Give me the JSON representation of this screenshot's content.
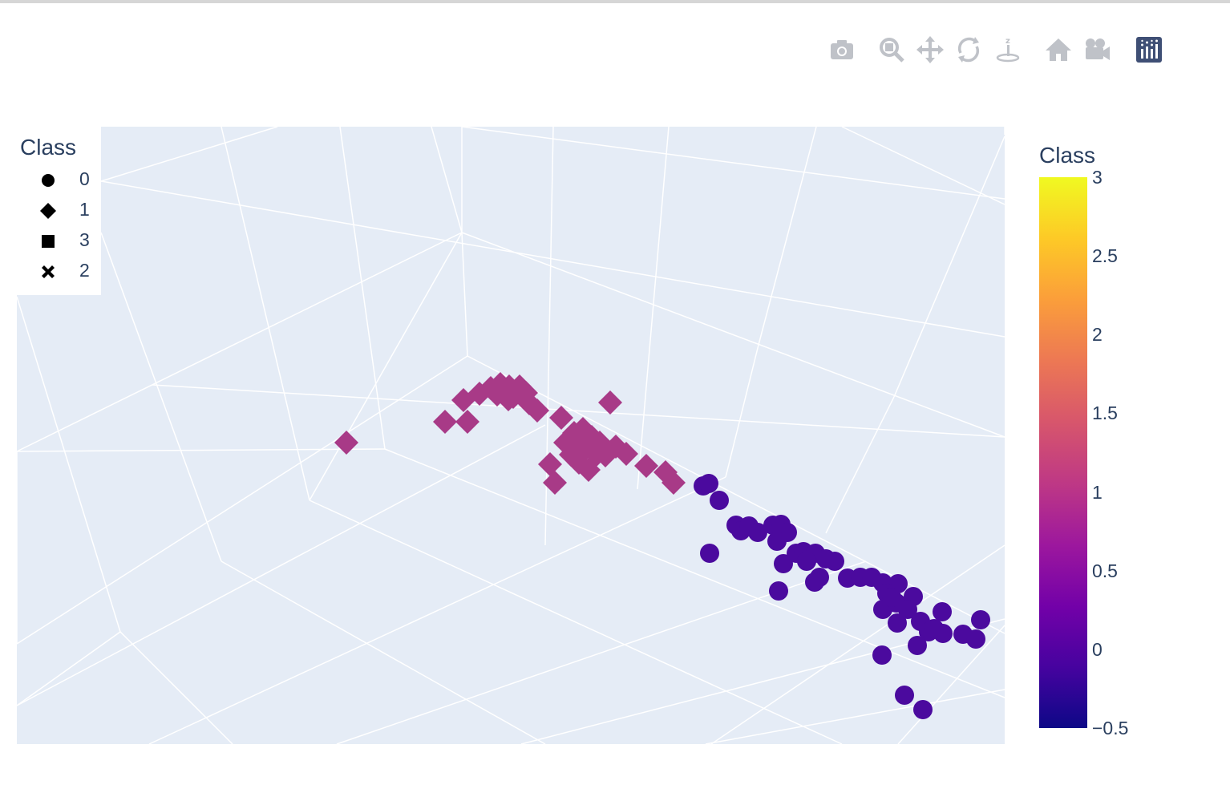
{
  "legend": {
    "title": "Class",
    "items": [
      {
        "label": "0",
        "symbol": "circle"
      },
      {
        "label": "1",
        "symbol": "diamond"
      },
      {
        "label": "3",
        "symbol": "square"
      },
      {
        "label": "2",
        "symbol": "x"
      }
    ]
  },
  "colorbar": {
    "title": "Class",
    "ticks": [
      "3",
      "2.5",
      "2",
      "1.5",
      "1",
      "0.5",
      "0",
      "−0.5"
    ],
    "tick_values": [
      3,
      2.5,
      2,
      1.5,
      1,
      0.5,
      0,
      -0.5
    ],
    "range": [
      -0.5,
      3
    ],
    "colorscale": [
      "#0d0887",
      "#46039f",
      "#7201a8",
      "#9c179e",
      "#bd3786",
      "#d8576b",
      "#ed7953",
      "#fb9f3a",
      "#fdca26",
      "#f0f921"
    ]
  },
  "modebar": {
    "buttons": [
      "camera-icon",
      "zoom-icon",
      "pan-icon",
      "orbit-icon",
      "turntable-icon",
      "home-icon",
      "camera-view-icon",
      "plotly-logo-icon"
    ]
  },
  "colors": {
    "scene_bg": "#e5ecf6",
    "grid": "#ffffff",
    "class0": "#4b0a9e",
    "class1": "#a83a87"
  },
  "chart_data": {
    "type": "scatter3d",
    "title": "",
    "xlabel": "",
    "ylabel": "",
    "zlabel": "",
    "grid": true,
    "legend_position": "top-left",
    "colorbar_position": "right",
    "series": [
      {
        "name": "0",
        "symbol": "circle",
        "class_value": 0,
        "screen_points": [
          [
            877,
            606
          ],
          [
            884,
            603
          ],
          [
            897,
            624
          ],
          [
            918,
            655
          ],
          [
            924,
            662
          ],
          [
            934,
            656
          ],
          [
            964,
            655
          ],
          [
            974,
            654
          ],
          [
            982,
            664
          ],
          [
            969,
            675
          ],
          [
            885,
            690
          ],
          [
            977,
            703
          ],
          [
            993,
            690
          ],
          [
            1002,
            688
          ],
          [
            1017,
            690
          ],
          [
            1030,
            697
          ],
          [
            1041,
            700
          ],
          [
            1022,
            720
          ],
          [
            1016,
            726
          ],
          [
            1057,
            721
          ],
          [
            1073,
            720
          ],
          [
            1087,
            720
          ],
          [
            1101,
            727
          ],
          [
            1120,
            728
          ],
          [
            1106,
            740
          ],
          [
            1118,
            752
          ],
          [
            1139,
            744
          ],
          [
            1101,
            760
          ],
          [
            1119,
            777
          ],
          [
            1148,
            775
          ],
          [
            1175,
            763
          ],
          [
            1158,
            788
          ],
          [
            1176,
            790
          ],
          [
            1201,
            791
          ],
          [
            1217,
            797
          ],
          [
            1223,
            773
          ],
          [
            1144,
            805
          ],
          [
            1100,
            817
          ],
          [
            1128,
            867
          ],
          [
            1151,
            885
          ],
          [
            971,
            737
          ],
          [
            1132,
            760
          ],
          [
            1165,
            784
          ],
          [
            1112,
            745
          ],
          [
            945,
            664
          ],
          [
            1006,
            700
          ]
        ]
      },
      {
        "name": "1",
        "symbol": "diamond",
        "class_value": 1,
        "screen_points": [
          [
            432,
            552
          ],
          [
            555,
            526
          ],
          [
            583,
            526
          ],
          [
            578,
            499
          ],
          [
            598,
            491
          ],
          [
            612,
            484
          ],
          [
            624,
            479
          ],
          [
            635,
            482
          ],
          [
            648,
            482
          ],
          [
            656,
            490
          ],
          [
            634,
            498
          ],
          [
            660,
            503
          ],
          [
            670,
            512
          ],
          [
            700,
            521
          ],
          [
            716,
            540
          ],
          [
            727,
            535
          ],
          [
            738,
            545
          ],
          [
            748,
            552
          ],
          [
            722,
            558
          ],
          [
            712,
            567
          ],
          [
            744,
            567
          ],
          [
            768,
            557
          ],
          [
            781,
            566
          ],
          [
            686,
            579
          ],
          [
            722,
            577
          ],
          [
            734,
            586
          ],
          [
            692,
            602
          ],
          [
            761,
            502
          ],
          [
            806,
            581
          ],
          [
            830,
            589
          ],
          [
            840,
            602
          ],
          [
            620,
            492
          ],
          [
            640,
            495
          ],
          [
            730,
            560
          ],
          [
            755,
            568
          ],
          [
            705,
            552
          ]
        ]
      },
      {
        "name": "3",
        "symbol": "square",
        "class_value": 3,
        "screen_points": []
      },
      {
        "name": "2",
        "symbol": "x",
        "class_value": 2,
        "screen_points": []
      }
    ]
  }
}
